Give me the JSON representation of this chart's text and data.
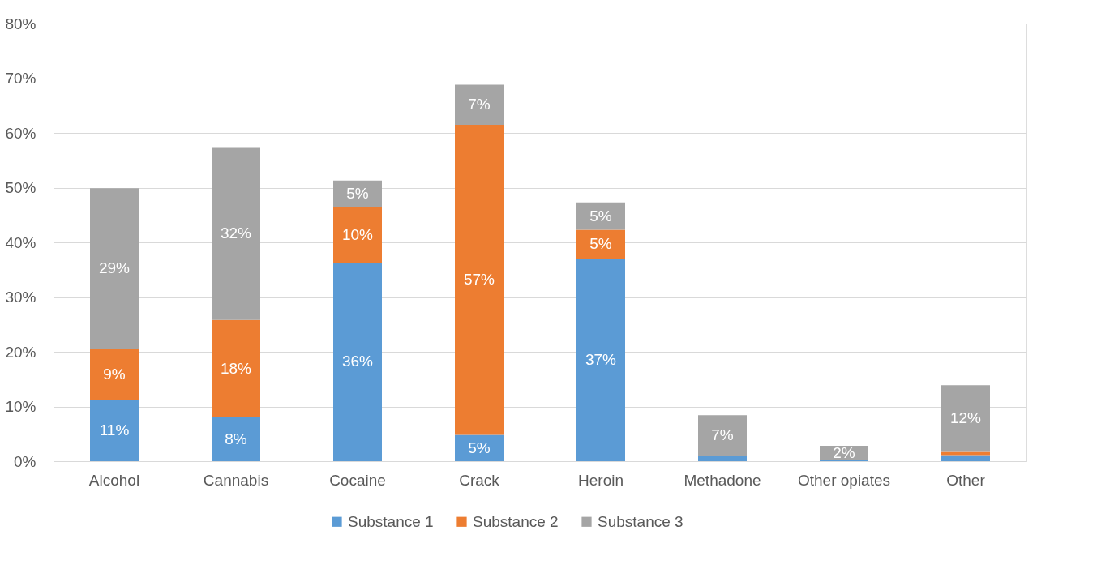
{
  "chart_data": {
    "type": "bar",
    "stacked": true,
    "categories": [
      "Alcohol",
      "Cannabis",
      "Cocaine",
      "Crack",
      "Heroin",
      "Methadone",
      "Other opiates",
      "Other"
    ],
    "series": [
      {
        "name": "Substance 1",
        "color": "#5b9bd5",
        "values": [
          11.2,
          8.0,
          36.3,
          4.8,
          37.0,
          1.0,
          0.3,
          1.1
        ],
        "value_labels": [
          "11%",
          "8%",
          "36%",
          "5%",
          "37%",
          null,
          null,
          null
        ]
      },
      {
        "name": "Substance 2",
        "color": "#ed7d31",
        "values": [
          9.4,
          17.8,
          10.1,
          56.7,
          5.3,
          0.0,
          0.0,
          0.6
        ],
        "value_labels": [
          "9%",
          "18%",
          "10%",
          "57%",
          "5%",
          null,
          null,
          null
        ]
      },
      {
        "name": "Substance 3",
        "color": "#a5a5a5",
        "values": [
          29.3,
          31.6,
          4.9,
          7.3,
          5.0,
          7.4,
          2.5,
          12.2
        ],
        "value_labels": [
          "29%",
          "32%",
          "5%",
          "7%",
          "5%",
          "7%",
          "2%",
          "12%"
        ]
      }
    ],
    "ylim": [
      0,
      80
    ],
    "yticks": [
      {
        "value": 0,
        "label": "0%"
      },
      {
        "value": 10,
        "label": "10%"
      },
      {
        "value": 20,
        "label": "20%"
      },
      {
        "value": 30,
        "label": "30%"
      },
      {
        "value": 40,
        "label": "40%"
      },
      {
        "value": 50,
        "label": "50%"
      },
      {
        "value": 60,
        "label": "60%"
      },
      {
        "value": 70,
        "label": "70%"
      },
      {
        "value": 80,
        "label": "80%"
      }
    ],
    "grid": "y",
    "legend": "bottom"
  }
}
